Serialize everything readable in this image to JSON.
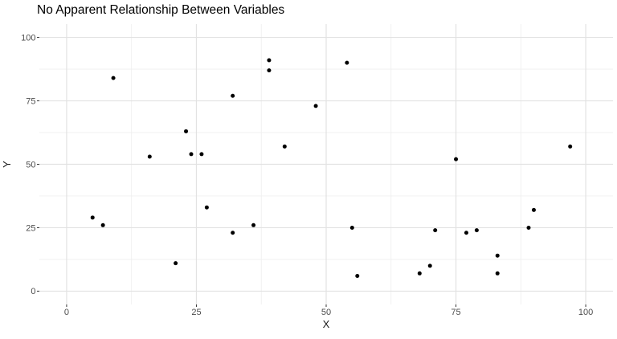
{
  "chart_data": {
    "type": "scatter",
    "title": "No Apparent Relationship Between Variables",
    "xlabel": "X",
    "ylabel": "Y",
    "xlim": [
      0,
      100
    ],
    "ylim": [
      0,
      100
    ],
    "x_ticks": [
      "0",
      "25",
      "50",
      "75",
      "100"
    ],
    "y_ticks": [
      "0",
      "25",
      "50",
      "75",
      "100"
    ],
    "grid": "major-and-minor",
    "legend": "none",
    "background_color": "#FFFFFF",
    "point_color": "#000000",
    "major_grid_color": "#E2E2E2",
    "minor_grid_color": "#EFEFEF",
    "tick_mark_color": "#333333",
    "tick_label_color": "#4D4D4D",
    "points": [
      {
        "x": 5,
        "y": 29
      },
      {
        "x": 7,
        "y": 26
      },
      {
        "x": 9,
        "y": 84
      },
      {
        "x": 16,
        "y": 53
      },
      {
        "x": 21,
        "y": 11
      },
      {
        "x": 23,
        "y": 63
      },
      {
        "x": 24,
        "y": 54
      },
      {
        "x": 26,
        "y": 54
      },
      {
        "x": 27,
        "y": 33
      },
      {
        "x": 32,
        "y": 23
      },
      {
        "x": 32,
        "y": 77
      },
      {
        "x": 36,
        "y": 26
      },
      {
        "x": 39,
        "y": 87
      },
      {
        "x": 39,
        "y": 91
      },
      {
        "x": 42,
        "y": 57
      },
      {
        "x": 48,
        "y": 73
      },
      {
        "x": 54,
        "y": 90
      },
      {
        "x": 55,
        "y": 25
      },
      {
        "x": 56,
        "y": 6
      },
      {
        "x": 68,
        "y": 7
      },
      {
        "x": 70,
        "y": 10
      },
      {
        "x": 71,
        "y": 24
      },
      {
        "x": 75,
        "y": 52
      },
      {
        "x": 77,
        "y": 23
      },
      {
        "x": 79,
        "y": 24
      },
      {
        "x": 83,
        "y": 7
      },
      {
        "x": 83,
        "y": 14
      },
      {
        "x": 89,
        "y": 25
      },
      {
        "x": 90,
        "y": 32
      },
      {
        "x": 97,
        "y": 57
      }
    ]
  }
}
